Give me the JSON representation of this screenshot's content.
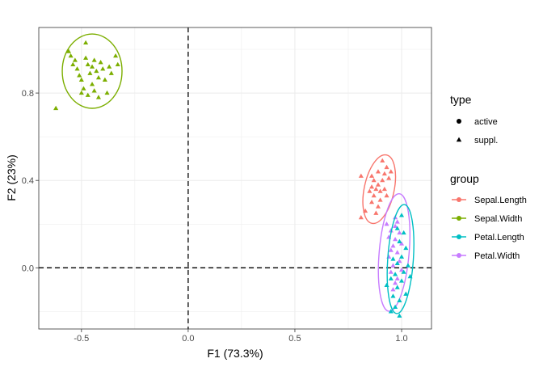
{
  "chart_data": {
    "type": "scatter",
    "title": "",
    "xlabel": "F1 (73.3%)",
    "ylabel": "F2 (23%)",
    "xlim": [
      -0.7,
      1.14
    ],
    "ylim": [
      -0.28,
      1.1
    ],
    "x_ticks": [
      -0.5,
      0.0,
      0.5,
      1.0
    ],
    "x_tick_labels": [
      "-0.5",
      "0.0",
      "0.5",
      "1.0"
    ],
    "y_ticks": [
      0.0,
      0.4,
      0.8
    ],
    "y_tick_labels": [
      "0.0",
      "0.4",
      "0.8"
    ],
    "reference_lines": {
      "x": 0,
      "y": 0,
      "style": "dashed"
    },
    "grid": true,
    "legend_placement": "right",
    "legend": {
      "type": {
        "title": "type",
        "items": [
          {
            "label": "active",
            "shape": "circle"
          },
          {
            "label": "suppl.",
            "shape": "triangle"
          }
        ]
      },
      "group": {
        "title": "group",
        "items": [
          {
            "label": "Sepal.Length",
            "color": "#F8766D"
          },
          {
            "label": "Sepal.Width",
            "color": "#7CAE00"
          },
          {
            "label": "Petal.Length",
            "color": "#00BFC4"
          },
          {
            "label": "Petal.Width",
            "color": "#C77CFF"
          }
        ]
      }
    },
    "series": [
      {
        "name": "Sepal.Width",
        "color": "#7CAE00",
        "ellipse": {
          "cx": -0.45,
          "cy": 0.9,
          "rx": 0.14,
          "ry": 0.17,
          "angle": 0
        },
        "points": [
          [
            -0.62,
            0.73
          ],
          [
            -0.56,
            0.99
          ],
          [
            -0.55,
            0.97
          ],
          [
            -0.54,
            0.93
          ],
          [
            -0.53,
            0.95
          ],
          [
            -0.52,
            0.91
          ],
          [
            -0.51,
            0.88
          ],
          [
            -0.5,
            0.86
          ],
          [
            -0.5,
            0.8
          ],
          [
            -0.49,
            0.82
          ],
          [
            -0.48,
            1.03
          ],
          [
            -0.48,
            0.96
          ],
          [
            -0.47,
            0.93
          ],
          [
            -0.46,
            0.89
          ],
          [
            -0.45,
            0.84
          ],
          [
            -0.45,
            0.92
          ],
          [
            -0.44,
            0.95
          ],
          [
            -0.43,
            0.9
          ],
          [
            -0.42,
            0.87
          ],
          [
            -0.42,
            0.78
          ],
          [
            -0.41,
            0.94
          ],
          [
            -0.4,
            0.91
          ],
          [
            -0.39,
            0.86
          ],
          [
            -0.38,
            0.8
          ],
          [
            -0.37,
            0.92
          ],
          [
            -0.36,
            0.89
          ],
          [
            -0.34,
            0.97
          ],
          [
            -0.33,
            0.93
          ],
          [
            -0.47,
            0.79
          ],
          [
            -0.44,
            0.81
          ]
        ]
      },
      {
        "name": "Sepal.Length",
        "color": "#F8766D",
        "ellipse": {
          "cx": 0.895,
          "cy": 0.36,
          "rx": 0.07,
          "ry": 0.16,
          "angle": 12
        },
        "points": [
          [
            0.81,
            0.42
          ],
          [
            0.81,
            0.23
          ],
          [
            0.83,
            0.26
          ],
          [
            0.85,
            0.35
          ],
          [
            0.86,
            0.37
          ],
          [
            0.86,
            0.3
          ],
          [
            0.87,
            0.4
          ],
          [
            0.87,
            0.33
          ],
          [
            0.88,
            0.36
          ],
          [
            0.88,
            0.25
          ],
          [
            0.89,
            0.44
          ],
          [
            0.89,
            0.38
          ],
          [
            0.9,
            0.35
          ],
          [
            0.9,
            0.31
          ],
          [
            0.91,
            0.49
          ],
          [
            0.91,
            0.4
          ],
          [
            0.92,
            0.43
          ],
          [
            0.92,
            0.36
          ],
          [
            0.93,
            0.46
          ],
          [
            0.93,
            0.33
          ],
          [
            0.94,
            0.41
          ],
          [
            0.95,
            0.44
          ],
          [
            0.89,
            0.28
          ],
          [
            0.86,
            0.42
          ]
        ]
      },
      {
        "name": "Petal.Width",
        "color": "#C77CFF",
        "ellipse": {
          "cx": 0.965,
          "cy": 0.07,
          "rx": 0.07,
          "ry": 0.27,
          "angle": 5
        },
        "points": [
          [
            0.93,
            0.2
          ],
          [
            0.94,
            0.14
          ],
          [
            0.94,
            0.05
          ],
          [
            0.95,
            0.17
          ],
          [
            0.95,
            -0.02
          ],
          [
            0.96,
            0.1
          ],
          [
            0.96,
            0.01
          ],
          [
            0.97,
            0.23
          ],
          [
            0.97,
            0.13
          ],
          [
            0.98,
            0.07
          ],
          [
            0.98,
            -0.05
          ],
          [
            0.99,
            0.16
          ],
          [
            0.99,
            0.03
          ],
          [
            1.0,
            0.11
          ],
          [
            0.96,
            -0.1
          ],
          [
            0.97,
            0.19
          ],
          [
            0.95,
            0.08
          ],
          [
            0.98,
            0.21
          ],
          [
            1.0,
            -0.01
          ],
          [
            0.97,
            -0.07
          ]
        ]
      },
      {
        "name": "Petal.Length",
        "color": "#00BFC4",
        "ellipse": {
          "cx": 0.995,
          "cy": 0.04,
          "rx": 0.06,
          "ry": 0.25,
          "angle": 4
        },
        "points": [
          [
            0.93,
            -0.08
          ],
          [
            0.95,
            -0.2
          ],
          [
            0.96,
            -0.13
          ],
          [
            0.97,
            -0.03
          ],
          [
            0.97,
            -0.18
          ],
          [
            0.98,
            0.02
          ],
          [
            0.98,
            -0.09
          ],
          [
            0.99,
            0.12
          ],
          [
            0.99,
            -0.15
          ],
          [
            1.0,
            0.05
          ],
          [
            1.0,
            -0.06
          ],
          [
            1.01,
            0.16
          ],
          [
            1.01,
            -0.02
          ],
          [
            1.02,
            0.09
          ],
          [
            1.02,
            -0.12
          ],
          [
            0.96,
            0.04
          ],
          [
            1.03,
            0.01
          ],
          [
            0.98,
            0.18
          ],
          [
            0.99,
            -0.22
          ],
          [
            1.0,
            0.24
          ],
          [
            0.95,
            -0.05
          ],
          [
            1.04,
            -0.04
          ]
        ]
      }
    ]
  }
}
